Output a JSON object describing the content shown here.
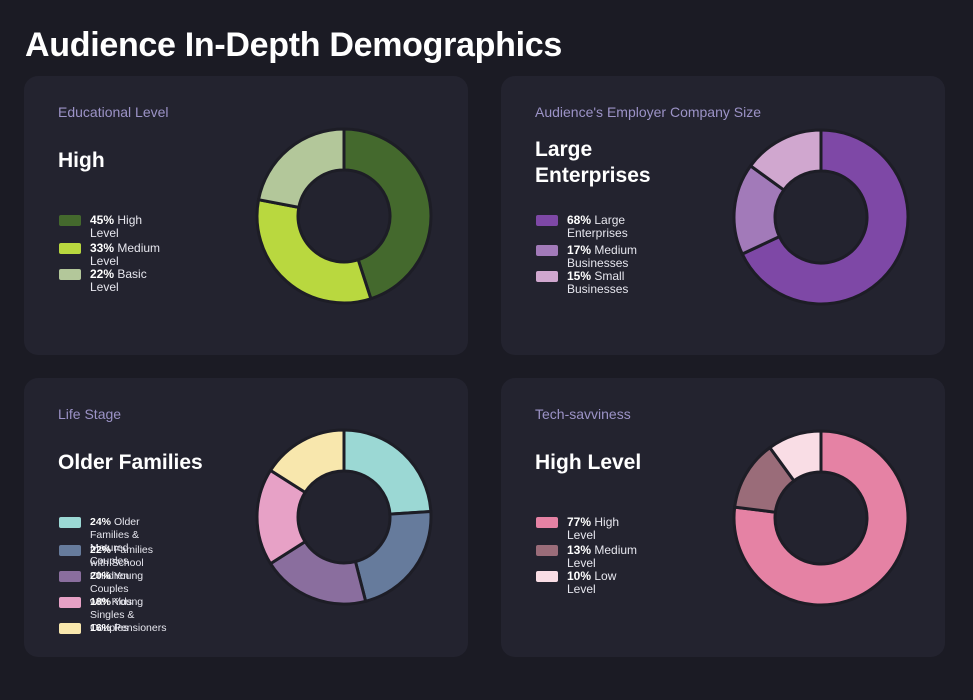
{
  "page": {
    "title": "Audience In-Depth Demographics"
  },
  "cards": [
    {
      "label": "Educational Level",
      "headline": "High",
      "legend": [
        {
          "pct": "45%",
          "text": "High Level"
        },
        {
          "pct": "33%",
          "text": "Medium Level"
        },
        {
          "pct": "22%",
          "text": "Basic Level"
        }
      ]
    },
    {
      "label": "Audience's Employer Company Size",
      "headline": "Large\nEnterprises",
      "legend": [
        {
          "pct": "68%",
          "text": "Large\nEnterprises"
        },
        {
          "pct": "17%",
          "text": "Medium Businesses"
        },
        {
          "pct": "15%",
          "text": "Small Businesses"
        }
      ]
    },
    {
      "label": "Life Stage",
      "headline": "Older Families",
      "legend": [
        {
          "pct": "24%",
          "text": "Older Families &\nMatured Couples"
        },
        {
          "pct": "22%",
          "text": "Families with School Children"
        },
        {
          "pct": "20%",
          "text": "Young Couples with Kids"
        },
        {
          "pct": "18%",
          "text": "Young Singles & Couples"
        },
        {
          "pct": "16%",
          "text": "Pensioners"
        }
      ]
    },
    {
      "label": "Tech-savviness",
      "headline": "High Level",
      "legend": [
        {
          "pct": "77%",
          "text": "High Level"
        },
        {
          "pct": "13%",
          "text": "Medium Level"
        },
        {
          "pct": "10%",
          "text": "Low Level"
        }
      ]
    }
  ],
  "chart_data": [
    {
      "type": "pie",
      "title": "Educational Level",
      "categories": [
        "High Level",
        "Medium Level",
        "Basic Level"
      ],
      "values": [
        45,
        33,
        22
      ],
      "colors": [
        "#44692d",
        "#b9d83f",
        "#b3c79a"
      ]
    },
    {
      "type": "pie",
      "title": "Audience's Employer Company Size",
      "categories": [
        "Large Enterprises",
        "Medium Businesses",
        "Small Businesses"
      ],
      "values": [
        68,
        17,
        15
      ],
      "colors": [
        "#7e48a6",
        "#a27ab9",
        "#d0a7cf"
      ]
    },
    {
      "type": "pie",
      "title": "Life Stage",
      "categories": [
        "Older Families & Matured Couples",
        "Families with School Children",
        "Young Couples with Kids",
        "Young Singles & Couples",
        "Pensioners"
      ],
      "values": [
        24,
        22,
        20,
        18,
        16
      ],
      "colors": [
        "#9bd8d4",
        "#667b9c",
        "#8a6e9e",
        "#e7a1c6",
        "#f8e7ad"
      ]
    },
    {
      "type": "pie",
      "title": "Tech-savviness",
      "categories": [
        "High Level",
        "Medium Level",
        "Low Level"
      ],
      "values": [
        77,
        13,
        10
      ],
      "colors": [
        "#e582a4",
        "#9a6c79",
        "#f9dde5"
      ]
    }
  ],
  "colors": {
    "background": "#1b1b24",
    "card": "#23232f",
    "label": "#9c93c7"
  }
}
